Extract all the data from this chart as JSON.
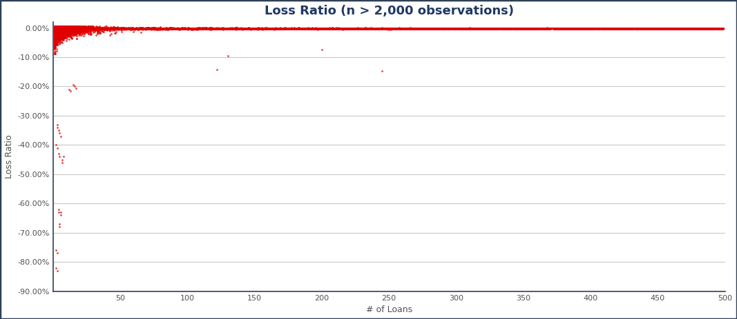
{
  "title": "Loss Ratio (n > 2,000 observations)",
  "xlabel": "# of Loans",
  "ylabel": "Loss Ratio",
  "xlim": [
    0,
    500
  ],
  "ylim": [
    -0.9,
    0.02
  ],
  "xticks": [
    50,
    100,
    150,
    200,
    250,
    300,
    350,
    400,
    450,
    500
  ],
  "yticks": [
    0.0,
    -0.1,
    -0.2,
    -0.3,
    -0.4,
    -0.5,
    -0.6,
    -0.7,
    -0.8,
    -0.9
  ],
  "ytick_labels": [
    "0.00%",
    "-10.00%",
    "-20.00%",
    "-30.00%",
    "-40.00%",
    "-50.00%",
    "-60.00%",
    "-70.00%",
    "-80.00%",
    "-90.00%"
  ],
  "dot_color": "#e00000",
  "bg_color": "#ffffff",
  "plot_bg_color": "#ffffff",
  "title_color": "#1f3864",
  "axis_label_color": "#505050",
  "grid_color": "#c8c8c8",
  "border_color": "#2e4057",
  "title_fontsize": 13,
  "label_fontsize": 9,
  "tick_fontsize": 8,
  "seed": 42,
  "n_main": 3000,
  "n_band": 8000
}
